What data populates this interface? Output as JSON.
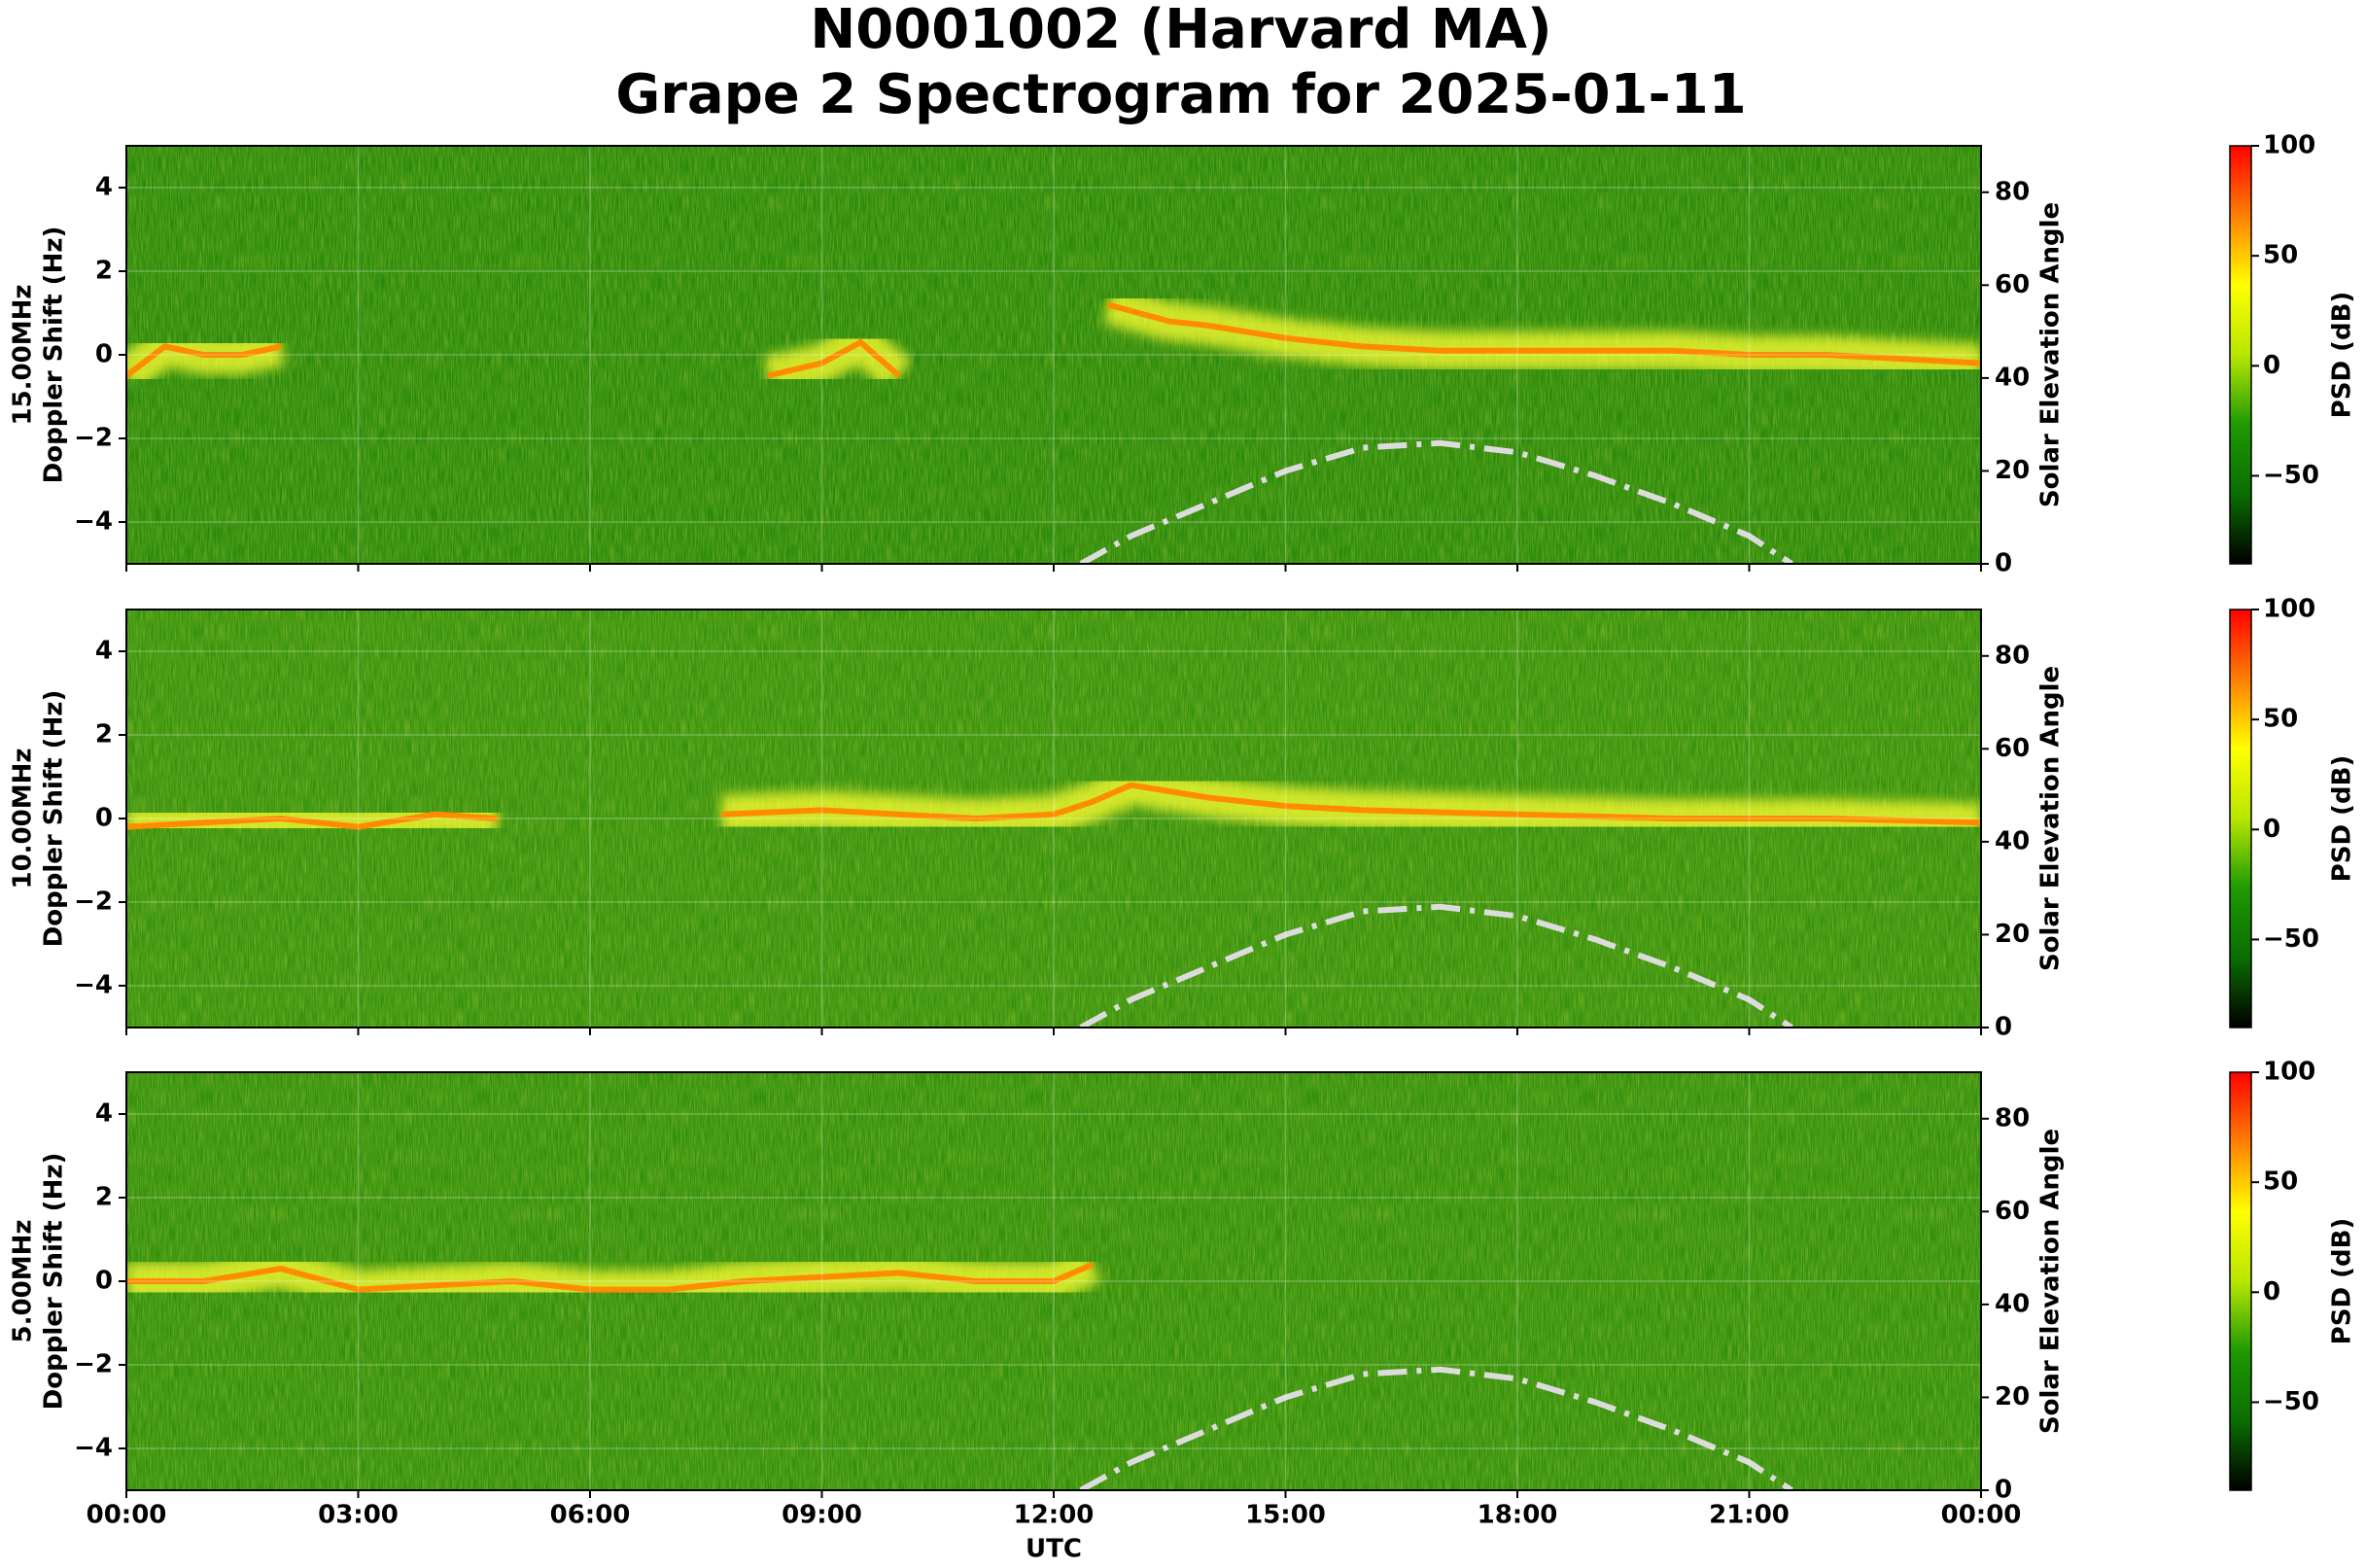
{
  "figure_title": [
    "N0001002 (Harvard MA)",
    "Grape 2 Spectrogram for 2025-01-11"
  ],
  "xlabel": "UTC",
  "colorbar": {
    "label": "PSD (dB)",
    "clim": [
      -90,
      100
    ],
    "colors": [
      "#000000",
      "#0a6e00",
      "#1f9a00",
      "#b8e600",
      "#ffff00",
      "#ff7f00",
      "#ff0000"
    ],
    "ticks": [
      {
        "value": -50,
        "label": "−50"
      },
      0,
      50,
      100
    ]
  },
  "chart_data": [
    {
      "type": "spectrogram",
      "ylabel_lines": [
        "15.00MHz",
        "Doppler Shift (Hz)"
      ],
      "y2label": "Solar Elevation Angle",
      "background": "#2b8a0c",
      "xlim": [
        0,
        24
      ],
      "xticks": [
        {
          "value": 0,
          "label": "00:00"
        },
        {
          "value": 3,
          "label": "03:00"
        },
        {
          "value": 6,
          "label": "06:00"
        },
        {
          "value": 9,
          "label": "09:00"
        },
        {
          "value": 12,
          "label": "12:00"
        },
        {
          "value": 15,
          "label": "15:00"
        },
        {
          "value": 18,
          "label": "18:00"
        },
        {
          "value": 21,
          "label": "21:00"
        },
        {
          "value": 24,
          "label": "00:00"
        }
      ],
      "ylim": [
        -5,
        5
      ],
      "yticks": [
        {
          "value": -4,
          "label": "−4"
        },
        {
          "value": -2,
          "label": "−2"
        },
        0,
        2,
        4
      ],
      "y2lim": [
        0,
        90
      ],
      "y2ticks": [
        0,
        20,
        40,
        60,
        80
      ],
      "grid": true,
      "trace": {
        "color": "#ff8c00",
        "x": [
          0,
          0.5,
          1,
          1.5,
          2,
          5,
          8.3,
          9,
          9.5,
          10,
          11,
          12.7,
          13.5,
          14,
          15,
          16,
          17,
          18,
          19,
          20,
          21,
          22,
          23,
          24
        ],
        "values": [
          -0.5,
          0.2,
          0,
          0,
          0.2,
          null,
          -0.5,
          -0.2,
          0.3,
          -0.5,
          null,
          1.2,
          0.8,
          0.7,
          0.4,
          0.2,
          0.1,
          0.1,
          0.1,
          0.1,
          0,
          0,
          -0.1,
          -0.2
        ]
      },
      "solar_elevation": {
        "color": "#dcdcdc",
        "axis": "y2",
        "x": [
          12.35,
          13,
          14,
          15,
          16,
          17,
          18,
          19,
          20,
          21,
          21.55
        ],
        "values": [
          0,
          6,
          13,
          20,
          25,
          26,
          24,
          19,
          13,
          6,
          0
        ]
      }
    },
    {
      "type": "spectrogram",
      "ylabel_lines": [
        "10.00MHz",
        "Doppler Shift (Hz)"
      ],
      "y2label": "Solar Elevation Angle",
      "background": "#37920e",
      "xlim": [
        0,
        24
      ],
      "xticks": [
        {
          "value": 0,
          "label": "00:00"
        },
        {
          "value": 3,
          "label": "03:00"
        },
        {
          "value": 6,
          "label": "06:00"
        },
        {
          "value": 9,
          "label": "09:00"
        },
        {
          "value": 12,
          "label": "12:00"
        },
        {
          "value": 15,
          "label": "15:00"
        },
        {
          "value": 18,
          "label": "18:00"
        },
        {
          "value": 21,
          "label": "21:00"
        },
        {
          "value": 24,
          "label": "00:00"
        }
      ],
      "ylim": [
        -5,
        5
      ],
      "yticks": [
        {
          "value": -4,
          "label": "−4"
        },
        {
          "value": -2,
          "label": "−2"
        },
        0,
        2,
        4
      ],
      "y2lim": [
        0,
        90
      ],
      "y2ticks": [
        0,
        20,
        40,
        60,
        80
      ],
      "grid": true,
      "trace": {
        "color": "#ff8c00",
        "x": [
          0,
          1,
          2,
          3,
          4,
          4.8,
          6,
          7.7,
          9,
          10,
          11,
          12,
          12.5,
          13,
          14,
          15,
          16,
          18,
          20,
          22,
          24
        ],
        "values": [
          -0.2,
          -0.1,
          0,
          -0.2,
          0.1,
          0,
          null,
          0.1,
          0.2,
          0.1,
          0,
          0.1,
          0.4,
          0.8,
          0.5,
          0.3,
          0.2,
          0.1,
          0,
          0,
          -0.1
        ]
      },
      "solar_elevation": {
        "color": "#dcdcdc",
        "axis": "y2",
        "x": [
          12.35,
          13,
          14,
          15,
          16,
          17,
          18,
          19,
          20,
          21,
          21.55
        ],
        "values": [
          0,
          6,
          13,
          20,
          25,
          26,
          24,
          19,
          13,
          6,
          0
        ]
      }
    },
    {
      "type": "spectrogram",
      "ylabel_lines": [
        "5.00MHz",
        "Doppler Shift (Hz)"
      ],
      "y2label": "Solar Elevation Angle",
      "background": "#33900d",
      "xlim": [
        0,
        24
      ],
      "xticks": [
        {
          "value": 0,
          "label": "00:00"
        },
        {
          "value": 3,
          "label": "03:00"
        },
        {
          "value": 6,
          "label": "06:00"
        },
        {
          "value": 9,
          "label": "09:00"
        },
        {
          "value": 12,
          "label": "12:00"
        },
        {
          "value": 15,
          "label": "15:00"
        },
        {
          "value": 18,
          "label": "18:00"
        },
        {
          "value": 21,
          "label": "21:00"
        },
        {
          "value": 24,
          "label": "00:00"
        }
      ],
      "ylim": [
        -5,
        5
      ],
      "yticks": [
        {
          "value": -4,
          "label": "−4"
        },
        {
          "value": -2,
          "label": "−2"
        },
        0,
        2,
        4
      ],
      "y2lim": [
        0,
        90
      ],
      "y2ticks": [
        0,
        20,
        40,
        60,
        80
      ],
      "grid": true,
      "trace": {
        "color": "#ff8c00",
        "x": [
          0,
          1,
          2,
          3,
          4,
          5,
          6,
          7,
          8,
          9,
          10,
          11,
          12,
          12.5
        ],
        "values": [
          0,
          0,
          0.3,
          -0.2,
          -0.1,
          0,
          -0.2,
          -0.2,
          0,
          0.1,
          0.2,
          0,
          0,
          0.4
        ]
      },
      "solar_elevation": {
        "color": "#dcdcdc",
        "axis": "y2",
        "x": [
          12.35,
          13,
          14,
          15,
          16,
          17,
          18,
          19,
          20,
          21,
          21.55
        ],
        "values": [
          0,
          6,
          13,
          20,
          25,
          26,
          24,
          19,
          13,
          6,
          0
        ]
      }
    }
  ]
}
